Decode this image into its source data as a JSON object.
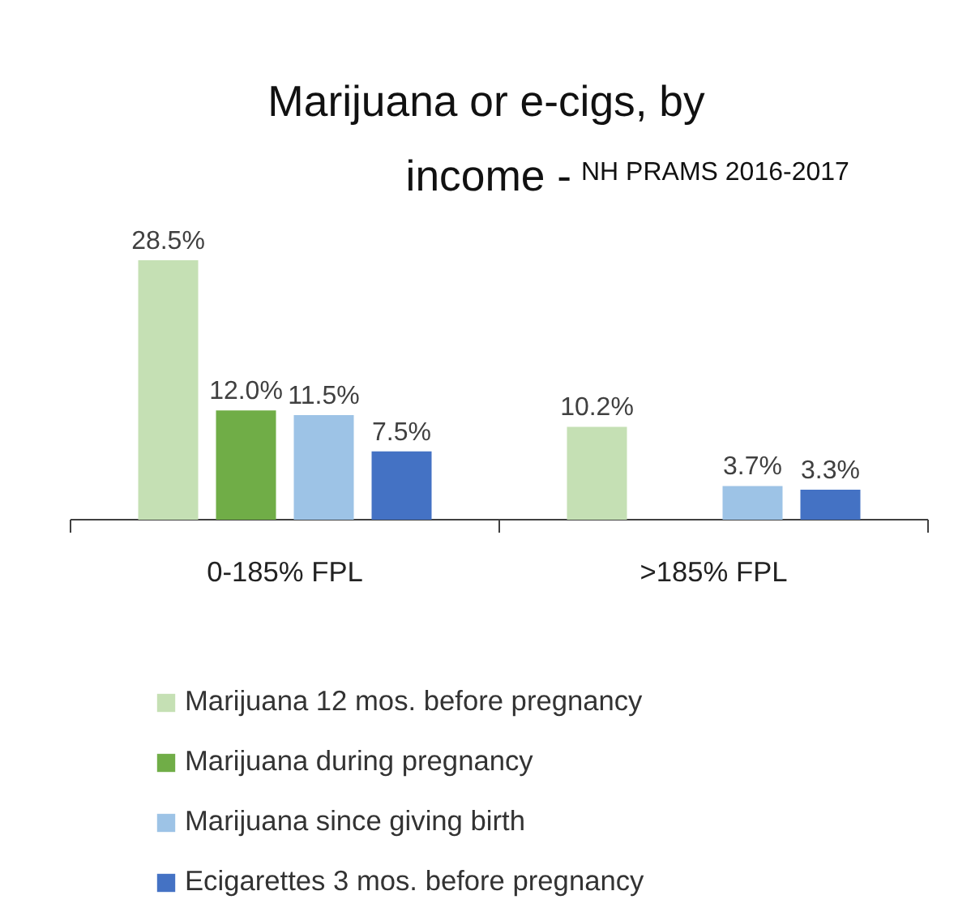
{
  "chart_data": {
    "type": "bar",
    "title": "Marijuana or e-cigs, by income -",
    "subtitle": "NH PRAMS 2016-2017",
    "categories": [
      "0-185% FPL",
      ">185% FPL"
    ],
    "tick_labels": "x",
    "legend": "bottom",
    "series": [
      {
        "name": "Marijuana 12 mos. before pregnancy",
        "color": "#c5e0b4",
        "values": [
          28.5,
          10.2
        ],
        "value_labels": [
          "28.5%",
          "10.2%"
        ]
      },
      {
        "name": "Marijuana during pregnancy",
        "color": "#70ad47",
        "values": [
          12.0,
          null
        ],
        "value_labels": [
          "12.0%",
          null
        ]
      },
      {
        "name": "Marijuana since giving birth",
        "color": "#9dc3e6",
        "values": [
          11.5,
          3.7
        ],
        "value_labels": [
          "11.5%",
          "3.7%"
        ]
      },
      {
        "name": "Ecigarettes 3 mos. before pregnancy",
        "color": "#4472c4",
        "values": [
          7.5,
          3.3
        ],
        "value_labels": [
          "7.5%",
          "3.3%"
        ]
      }
    ]
  }
}
